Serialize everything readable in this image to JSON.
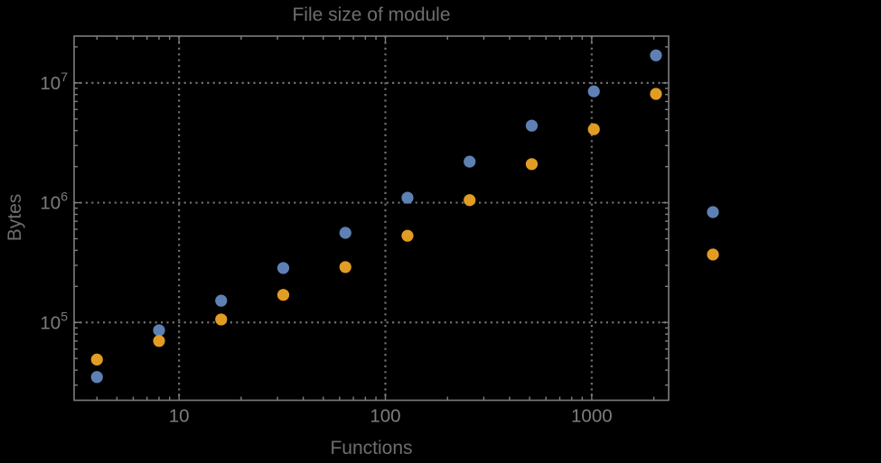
{
  "title": "File size of module",
  "colors": {
    "background": "#000000",
    "series1_blue": "#5e81b5",
    "series2_orange": "#e19c24",
    "frame": "#7d7d7d",
    "grid": "#6e6e6e",
    "tick_label": "#7d7d7d",
    "text_label": "#6e6e6e"
  },
  "chart_data": {
    "type": "scatter",
    "title": "File size of module",
    "xlabel": "Functions",
    "ylabel": "Bytes",
    "xscale": "log",
    "yscale": "log",
    "xlim": [
      3.1,
      2360
    ],
    "ylim": [
      22400,
      24600000
    ],
    "grid": "major, dotted, both axes",
    "frame": true,
    "x_major_ticks": [
      {
        "v": 10,
        "label": "10"
      },
      {
        "v": 100,
        "label": "100"
      },
      {
        "v": 1000,
        "label": "1000"
      }
    ],
    "y_major_ticks": [
      {
        "v": 100000,
        "mantissa": "10",
        "exponent": "5"
      },
      {
        "v": 1000000,
        "mantissa": "10",
        "exponent": "6"
      },
      {
        "v": 10000000,
        "mantissa": "10",
        "exponent": "7"
      }
    ],
    "series": [
      {
        "name": "series-1",
        "color": "#5e81b5",
        "points": [
          [
            4,
            35000
          ],
          [
            8,
            86000
          ],
          [
            16,
            152000
          ],
          [
            32,
            285000
          ],
          [
            64,
            560000
          ],
          [
            128,
            1100000
          ],
          [
            256,
            2200000
          ],
          [
            512,
            4400000
          ],
          [
            1024,
            8500000
          ],
          [
            2048,
            17000000
          ]
        ]
      },
      {
        "name": "series-2",
        "color": "#e19c24",
        "points": [
          [
            4,
            49000
          ],
          [
            8,
            70000
          ],
          [
            16,
            106000
          ],
          [
            32,
            170000
          ],
          [
            64,
            290000
          ],
          [
            128,
            530000
          ],
          [
            256,
            1050000
          ],
          [
            512,
            2100000
          ],
          [
            1024,
            4100000
          ],
          [
            2048,
            8100000
          ]
        ]
      }
    ],
    "legend": {
      "position": "outside-right",
      "labels_visible": false,
      "markers": [
        {
          "series": "series-1",
          "color": "#5e81b5"
        },
        {
          "series": "series-2",
          "color": "#e19c24"
        }
      ]
    }
  }
}
